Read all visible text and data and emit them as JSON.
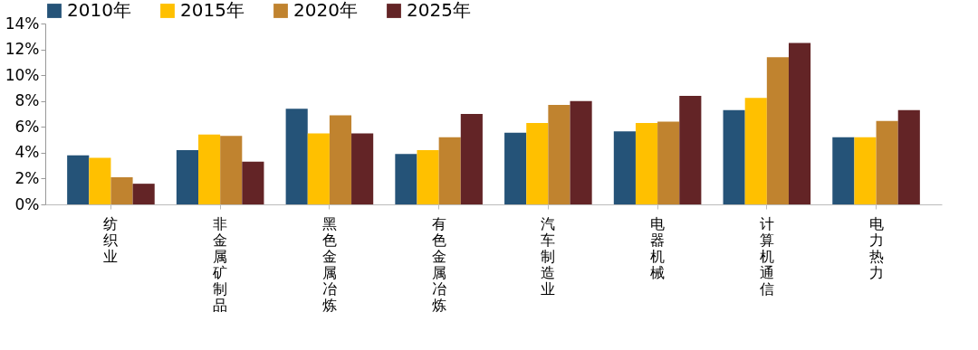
{
  "chart_data": {
    "type": "bar",
    "categories": [
      "纺织业",
      "非金属矿制品",
      "黑色金属冶炼",
      "有色金属冶炼",
      "汽车制造业",
      "电器机械",
      "计算机通信",
      "电力热力"
    ],
    "series": [
      {
        "name": "2010年",
        "color": "#255378",
        "values": [
          3.8,
          4.2,
          7.4,
          3.9,
          5.55,
          5.65,
          7.3,
          5.2
        ]
      },
      {
        "name": "2015年",
        "color": "#ffc000",
        "values": [
          3.6,
          5.4,
          5.5,
          4.2,
          6.3,
          6.3,
          8.25,
          5.2
        ]
      },
      {
        "name": "2020年",
        "color": "#c0832f",
        "values": [
          2.1,
          5.3,
          6.9,
          5.2,
          7.7,
          6.4,
          11.4,
          6.45
        ]
      },
      {
        "name": "2025年",
        "color": "#632426",
        "values": [
          1.6,
          3.3,
          5.5,
          7.0,
          8.0,
          8.4,
          12.5,
          7.3
        ]
      }
    ],
    "ylim": [
      0,
      14
    ],
    "yticks": [
      {
        "value": 0,
        "label": "0%"
      },
      {
        "value": 2,
        "label": "2%"
      },
      {
        "value": 4,
        "label": "4%"
      },
      {
        "value": 6,
        "label": "6%"
      },
      {
        "value": 8,
        "label": "8%"
      },
      {
        "value": 10,
        "label": "10%"
      },
      {
        "value": 12,
        "label": "12%"
      },
      {
        "value": 14,
        "label": "14%"
      }
    ],
    "legend": "top",
    "grid": false
  }
}
